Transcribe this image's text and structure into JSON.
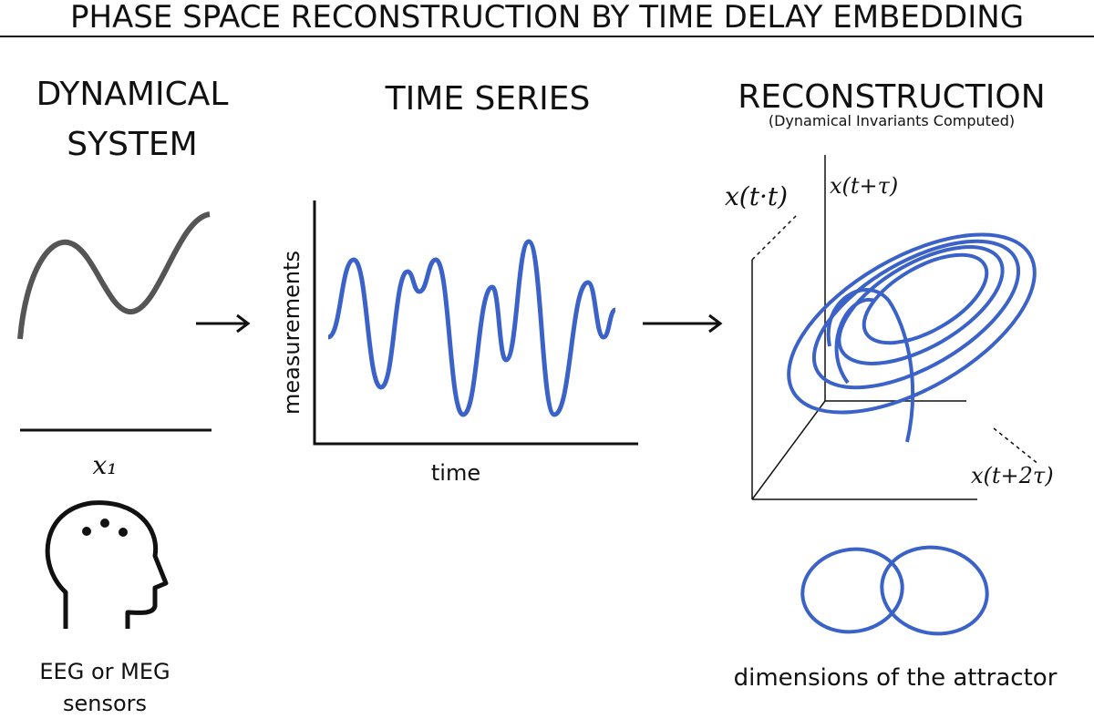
{
  "header": {
    "title": "PHASE SPACE RECONSTRUCTION BY TIME DELAY EMBEDDING"
  },
  "panels": [
    {
      "title_lines": [
        "DYNAMICAL",
        "SYSTEM"
      ],
      "axis_label": "x₁",
      "caption_lines": [
        "EEG or MEG",
        "sensors"
      ]
    },
    {
      "title_lines": [
        "TIME SERIES"
      ],
      "y_label": "measurements",
      "x_label": "time"
    },
    {
      "title_lines": [
        "RECONSTRUCTION"
      ],
      "subtitle": "(Dynamical Invariants Computed)",
      "axis_labels": [
        "x(t·t)",
        "x(t+τ)",
        "x(t+2τ)"
      ],
      "caption": "dimensions of the attractor"
    }
  ]
}
